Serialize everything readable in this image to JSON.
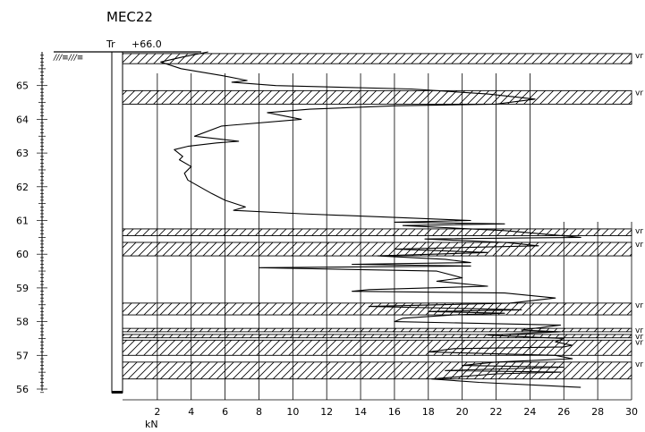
{
  "chart_data": {
    "type": "line",
    "title": "MEC22",
    "surface_label": "Tr",
    "surface_level": "+66.0",
    "xlabel": "kN",
    "xlim": [
      0,
      30
    ],
    "ylim": [
      55.9,
      66.0
    ],
    "x_ticks": [
      "2",
      "4",
      "6",
      "8",
      "10",
      "12",
      "14",
      "16",
      "18",
      "20",
      "22",
      "24",
      "26",
      "28",
      "30"
    ],
    "y_ticks": [
      "56",
      "57",
      "58",
      "59",
      "60",
      "61",
      "62",
      "63",
      "64",
      "65"
    ],
    "layers": [
      {
        "top": 65.95,
        "bottom": 65.65,
        "label": "vr"
      },
      {
        "top": 64.85,
        "bottom": 64.45,
        "label": "vr"
      },
      {
        "top": 60.75,
        "bottom": 60.55,
        "label": "vr"
      },
      {
        "top": 60.35,
        "bottom": 59.95,
        "label": "vr"
      },
      {
        "top": 58.55,
        "bottom": 58.2,
        "label": "vr"
      },
      {
        "top": 57.8,
        "bottom": 57.7,
        "label": "vr"
      },
      {
        "top": 57.62,
        "bottom": 57.52,
        "label": "vr"
      },
      {
        "top": 57.45,
        "bottom": 57.0,
        "label": "vr"
      },
      {
        "top": 56.8,
        "bottom": 56.3,
        "label": "vr"
      }
    ],
    "series": [
      {
        "depth": [
          66.0,
          65.85,
          65.7,
          65.5,
          65.3,
          65.15,
          65.1,
          65.0,
          64.9,
          64.75,
          64.6,
          64.45,
          64.4,
          64.3,
          64.2,
          64.0,
          63.8,
          63.5,
          63.35,
          63.3,
          63.2,
          63.1,
          62.9,
          62.8,
          62.6,
          62.4,
          62.2,
          62.0,
          61.8,
          61.6,
          61.4,
          61.3,
          61.2,
          61.1,
          61.0,
          60.95,
          60.9,
          60.85,
          60.7,
          60.5,
          60.45,
          60.35,
          60.25,
          60.15,
          60.05,
          59.95,
          59.85,
          59.75,
          59.7,
          59.65,
          59.6,
          59.5,
          59.3,
          59.2,
          59.05,
          58.95,
          58.9,
          58.85,
          58.7,
          58.55,
          58.45,
          58.35,
          58.3,
          58.25,
          58.2,
          58.1,
          58.0,
          57.9,
          57.75,
          57.7,
          57.6,
          57.5,
          57.4,
          57.3,
          57.25,
          57.2,
          57.1,
          57.0,
          56.9,
          56.8,
          56.7,
          56.65,
          56.55,
          56.5,
          56.45,
          56.3,
          56.2,
          56.1,
          56.05
        ],
        "force": [
          5.0,
          3.5,
          2.2,
          3.4,
          5.8,
          7.3,
          6.4,
          9.0,
          17.0,
          21.5,
          24.3,
          22.0,
          16.0,
          11.0,
          8.5,
          10.5,
          5.8,
          4.2,
          6.8,
          5.5,
          3.8,
          3.0,
          3.5,
          3.3,
          4.0,
          3.6,
          3.8,
          4.5,
          5.2,
          6.0,
          7.2,
          6.5,
          10.5,
          15.5,
          20.5,
          16.0,
          22.5,
          16.5,
          22.5,
          27.0,
          17.8,
          22.5,
          24.5,
          16.0,
          21.5,
          15.0,
          19.0,
          20.5,
          13.5,
          20.5,
          8.0,
          18.5,
          20.0,
          18.5,
          21.5,
          14.5,
          13.5,
          22.5,
          25.5,
          22.8,
          14.5,
          23.5,
          18.0,
          22.5,
          19.5,
          16.5,
          16.0,
          25.8,
          23.5,
          25.8,
          21.5,
          26.0,
          25.5,
          26.5,
          26.0,
          19.5,
          18.0,
          25.5,
          26.5,
          22.0,
          20.0,
          26.0,
          19.0,
          25.8,
          22.0,
          18.2,
          21.0,
          25.0,
          27.0
        ]
      }
    ]
  }
}
